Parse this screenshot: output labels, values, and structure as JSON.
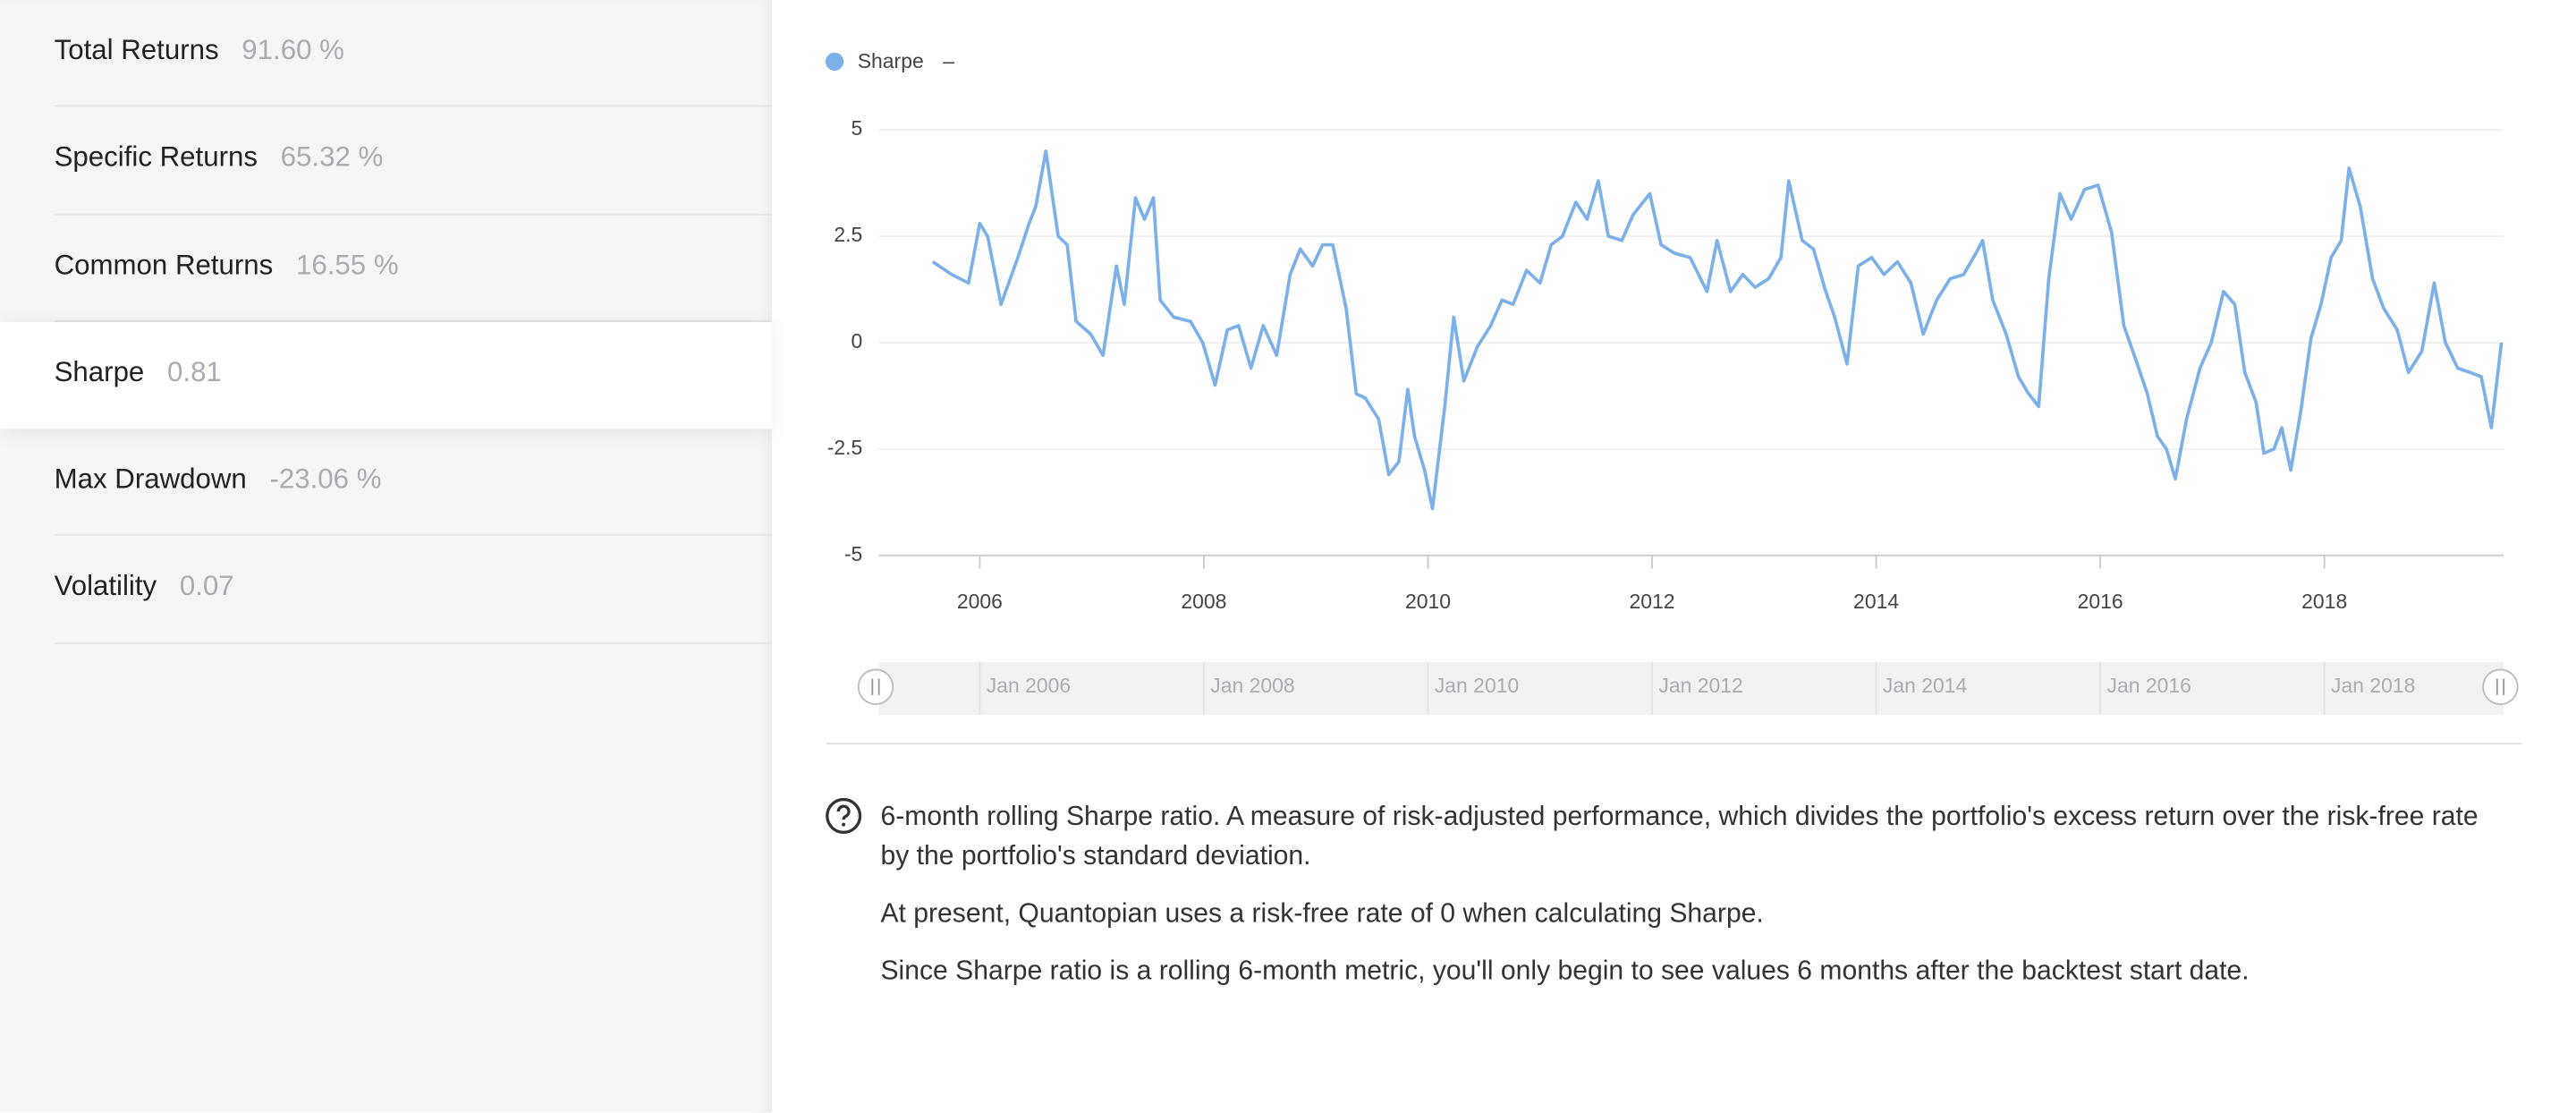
{
  "metrics": [
    {
      "label": "Total Returns",
      "value": "91.60 %"
    },
    {
      "label": "Specific Returns",
      "value": "65.32 %"
    },
    {
      "label": "Common Returns",
      "value": "16.55 %"
    },
    {
      "label": "Sharpe",
      "value": "0.81"
    },
    {
      "label": "Max Drawdown",
      "value": "-23.06 %"
    },
    {
      "label": "Volatility",
      "value": "0.07"
    }
  ],
  "chart_data": {
    "type": "line",
    "legend_value": "–",
    "x": [
      2005.58,
      2005.75,
      2005.9,
      2006.0,
      2006.07,
      2006.19,
      2006.34,
      2006.44,
      2006.5,
      2006.59,
      2006.7,
      2006.78,
      2006.86,
      2006.99,
      2007.1,
      2007.22,
      2007.29,
      2007.39,
      2007.47,
      2007.55,
      2007.61,
      2007.73,
      2007.88,
      2007.99,
      2008.1,
      2008.21,
      2008.31,
      2008.42,
      2008.53,
      2008.65,
      2008.77,
      2008.86,
      2008.97,
      2009.06,
      2009.15,
      2009.27,
      2009.36,
      2009.44,
      2009.56,
      2009.65,
      2009.74,
      2009.82,
      2009.88,
      2009.97,
      2010.04,
      2010.15,
      2010.23,
      2010.32,
      2010.44,
      2010.56,
      2010.66,
      2010.76,
      2010.88,
      2011.0,
      2011.1,
      2011.2,
      2011.32,
      2011.42,
      2011.52,
      2011.61,
      2011.73,
      2011.83,
      2011.98,
      2012.08,
      2012.2,
      2012.34,
      2012.49,
      2012.58,
      2012.7,
      2012.81,
      2012.92,
      2013.04,
      2013.15,
      2013.22,
      2013.34,
      2013.44,
      2013.55,
      2013.63,
      2013.74,
      2013.84,
      2013.96,
      2014.07,
      2014.19,
      2014.31,
      2014.42,
      2014.54,
      2014.66,
      2014.78,
      2014.89,
      2014.95,
      2015.04,
      2015.16,
      2015.27,
      2015.36,
      2015.45,
      2015.54,
      2015.64,
      2015.74,
      2015.86,
      2015.98,
      2016.1,
      2016.21,
      2016.33,
      2016.42,
      2016.51,
      2016.59,
      2016.67,
      2016.77,
      2016.89,
      2016.99,
      2017.1,
      2017.2,
      2017.29,
      2017.39,
      2017.46,
      2017.55,
      2017.62,
      2017.7,
      2017.79,
      2017.88,
      2017.97,
      2018.06,
      2018.15,
      2018.22,
      2018.32,
      2018.43,
      2018.53,
      2018.65,
      2018.75,
      2018.87,
      2018.98,
      2019.08,
      2019.19,
      2019.3,
      2019.4,
      2019.49,
      2019.58
    ],
    "series": [
      {
        "name": "Sharpe",
        "color": "#7cb0e8",
        "values": [
          1.9,
          1.6,
          1.4,
          2.8,
          2.5,
          0.9,
          2.0,
          2.8,
          3.2,
          4.5,
          2.5,
          2.3,
          0.5,
          0.2,
          -0.3,
          1.8,
          0.9,
          3.4,
          2.9,
          3.4,
          1.0,
          0.6,
          0.5,
          0.0,
          -1.0,
          0.3,
          0.4,
          -0.6,
          0.4,
          -0.3,
          1.6,
          2.2,
          1.8,
          2.3,
          2.3,
          0.8,
          -1.2,
          -1.3,
          -1.8,
          -3.1,
          -2.8,
          -1.1,
          -2.2,
          -3.0,
          -3.9,
          -1.5,
          0.6,
          -0.9,
          -0.1,
          0.4,
          1.0,
          0.9,
          1.7,
          1.4,
          2.3,
          2.5,
          3.3,
          2.9,
          3.8,
          2.5,
          2.4,
          3.0,
          3.5,
          2.3,
          2.1,
          2.0,
          1.2,
          2.4,
          1.2,
          1.6,
          1.3,
          1.5,
          2.0,
          3.8,
          2.4,
          2.2,
          1.2,
          0.6,
          -0.5,
          1.8,
          2.0,
          1.6,
          1.9,
          1.4,
          0.2,
          1.0,
          1.5,
          1.6,
          2.1,
          2.4,
          1.0,
          0.2,
          -0.8,
          -1.2,
          -1.5,
          1.5,
          3.5,
          2.9,
          3.6,
          3.7,
          2.6,
          0.4,
          -0.5,
          -1.2,
          -2.2,
          -2.5,
          -3.2,
          -1.8,
          -0.6,
          0.0,
          1.2,
          0.9,
          -0.7,
          -1.4,
          -2.6,
          -2.5,
          -2.0,
          -3.0,
          -1.6,
          0.1,
          0.9,
          2.0,
          2.4,
          4.1,
          3.2,
          1.5,
          0.8,
          0.3,
          -0.7,
          -0.2,
          1.4,
          0.0,
          -0.6,
          -0.7,
          -0.8,
          -2.0,
          0.0
        ]
      }
    ],
    "xlim": [
      2005.1,
      2019.6
    ],
    "xticks": [
      2006,
      2008,
      2010,
      2012,
      2014,
      2016,
      2018
    ],
    "ylim": [
      -5,
      5
    ],
    "yticks": [
      5,
      2.5,
      0,
      -2.5,
      -5
    ],
    "grid": true,
    "navigator_ticks": [
      {
        "value": 2006,
        "label": "Jan 2006"
      },
      {
        "value": 2008,
        "label": "Jan 2008"
      },
      {
        "value": 2010,
        "label": "Jan 2010"
      },
      {
        "value": 2012,
        "label": "Jan 2012"
      },
      {
        "value": 2014,
        "label": "Jan 2014"
      },
      {
        "value": 2016,
        "label": "Jan 2016"
      },
      {
        "value": 2018,
        "label": "Jan 2018"
      }
    ]
  },
  "help": [
    "6-month rolling Sharpe ratio. A measure of risk-adjusted performance, which divides the portfolio's excess return over the risk-free rate by the portfolio's standard deviation.",
    "At present, Quantopian uses a risk-free rate of 0 when calculating Sharpe.",
    "Since Sharpe ratio is a rolling 6-month metric, you'll only begin to see values 6 months after the backtest start date."
  ]
}
